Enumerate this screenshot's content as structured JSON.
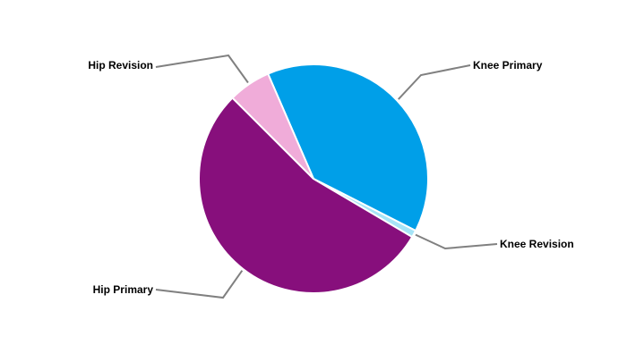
{
  "chart_data": {
    "type": "pie",
    "start_angle_deg": 336.6,
    "direction": "clockwise",
    "slices": [
      {
        "label": "Knee Primary",
        "value": 39,
        "color": "#009fe8"
      },
      {
        "label": "Knee Revision",
        "value": 1,
        "color": "#a6e4f7"
      },
      {
        "label": "Hip Primary",
        "value": 54,
        "color": "#870f7c"
      },
      {
        "label": "Hip Revision",
        "value": 6,
        "color": "#f0acd9"
      }
    ],
    "leader_line_color": "#808080",
    "legend": "none"
  }
}
